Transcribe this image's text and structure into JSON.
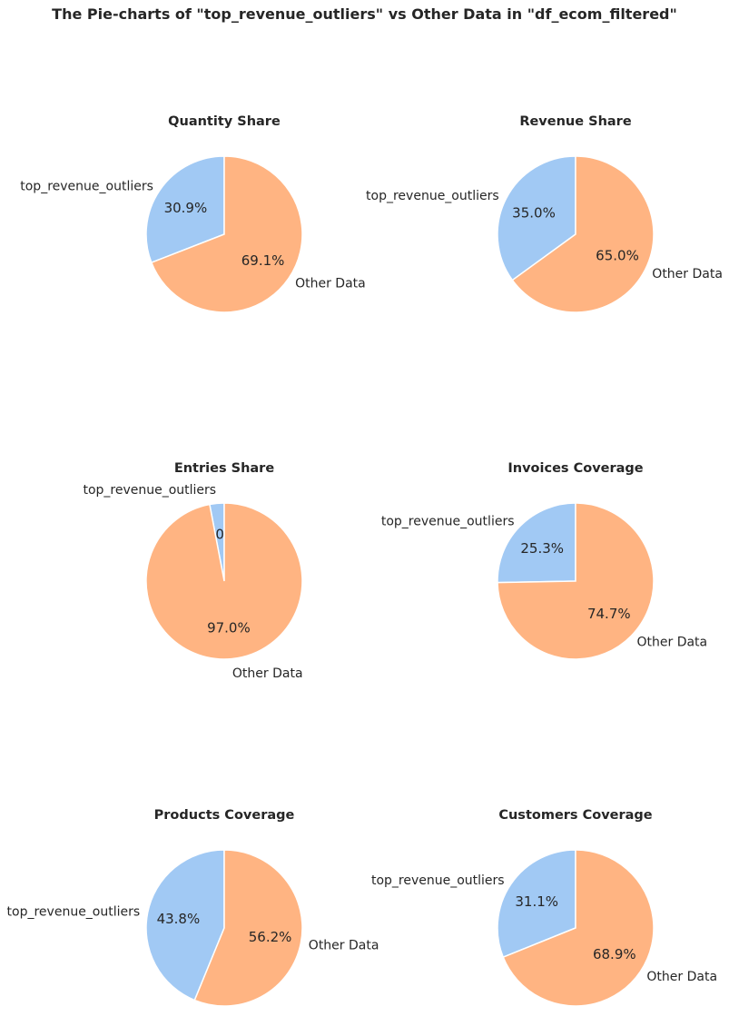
{
  "title": "The Pie-charts of \"top_revenue_outliers\" vs Other Data in \"df_ecom_filtered\"",
  "colors": {
    "outliers": "#a1c9f4",
    "other": "#ffb482"
  },
  "chart_data": [
    {
      "type": "pie",
      "title": "Quantity Share",
      "labels": [
        "top_revenue_outliers",
        "Other Data"
      ],
      "values": [
        30.9,
        69.1
      ]
    },
    {
      "type": "pie",
      "title": "Revenue Share",
      "labels": [
        "top_revenue_outliers",
        "Other Data"
      ],
      "values": [
        35.0,
        65.0
      ]
    },
    {
      "type": "pie",
      "title": "Entries Share",
      "labels": [
        "top_revenue_outliers",
        "Other Data"
      ],
      "values": [
        3.0,
        97.0
      ]
    },
    {
      "type": "pie",
      "title": "Invoices Coverage",
      "labels": [
        "top_revenue_outliers",
        "Other Data"
      ],
      "values": [
        25.3,
        74.7
      ]
    },
    {
      "type": "pie",
      "title": "Products Coverage",
      "labels": [
        "top_revenue_outliers",
        "Other Data"
      ],
      "values": [
        43.8,
        56.2
      ]
    },
    {
      "type": "pie",
      "title": "Customers Coverage",
      "labels": [
        "top_revenue_outliers",
        "Other Data"
      ],
      "values": [
        31.1,
        68.9
      ]
    }
  ]
}
